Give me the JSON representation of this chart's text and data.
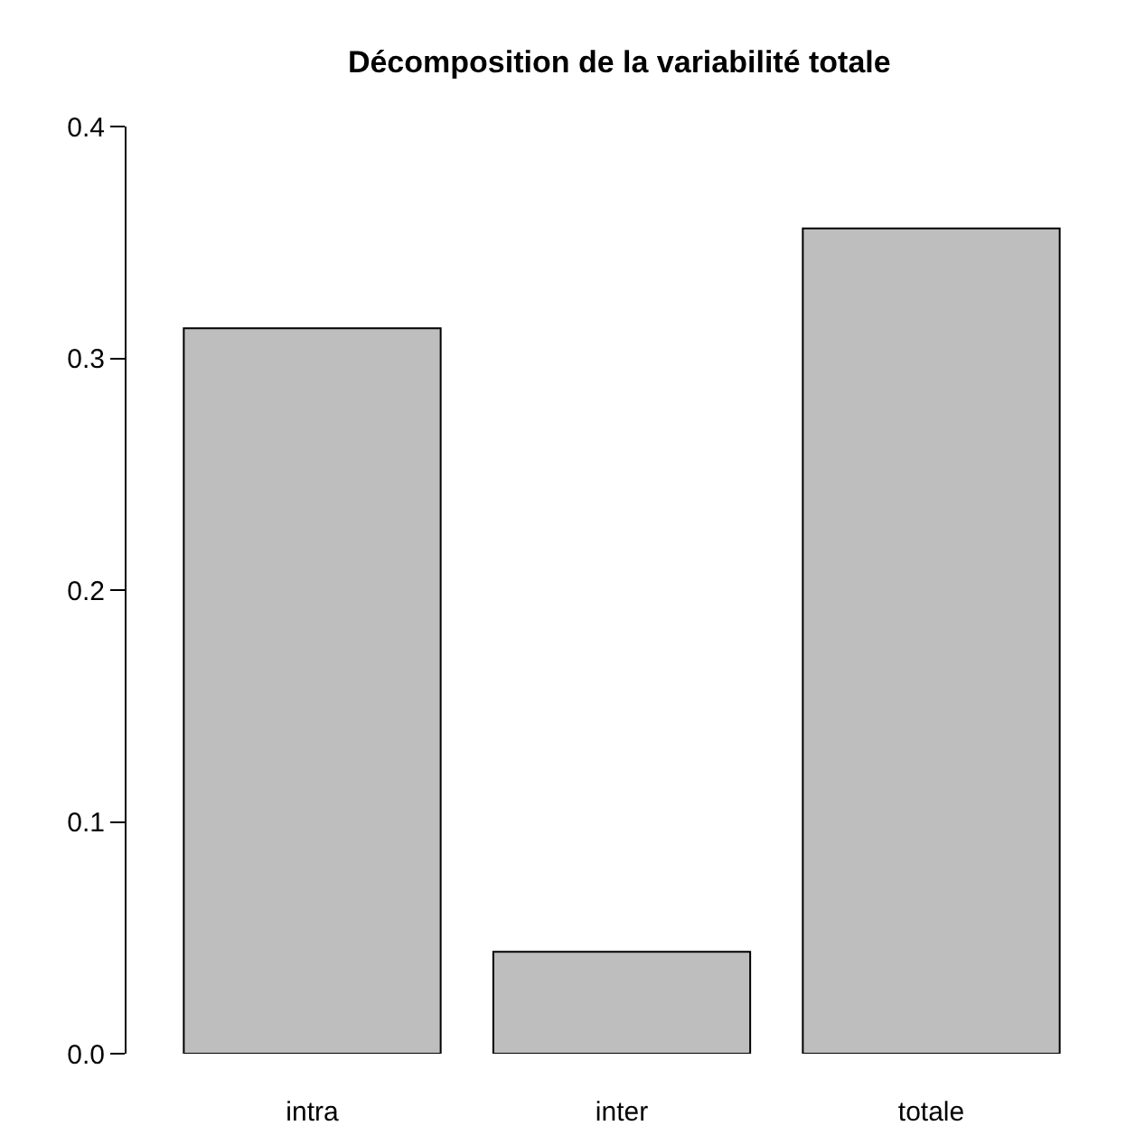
{
  "chart_data": {
    "type": "bar",
    "title": "Décomposition de la variabilité totale",
    "categories": [
      "intra",
      "inter",
      "totale"
    ],
    "values": [
      0.313,
      0.044,
      0.356
    ],
    "color": "#bebebe",
    "ylim": [
      0,
      0.4
    ],
    "yticks": [
      {
        "value": 0,
        "label": "0.0"
      },
      {
        "value": 0.1,
        "label": "0.1"
      },
      {
        "value": 0.2,
        "label": "0.2"
      },
      {
        "value": 0.3,
        "label": "0.3"
      },
      {
        "value": 0.4,
        "label": "0.4"
      }
    ],
    "tick_labels": "xy"
  }
}
